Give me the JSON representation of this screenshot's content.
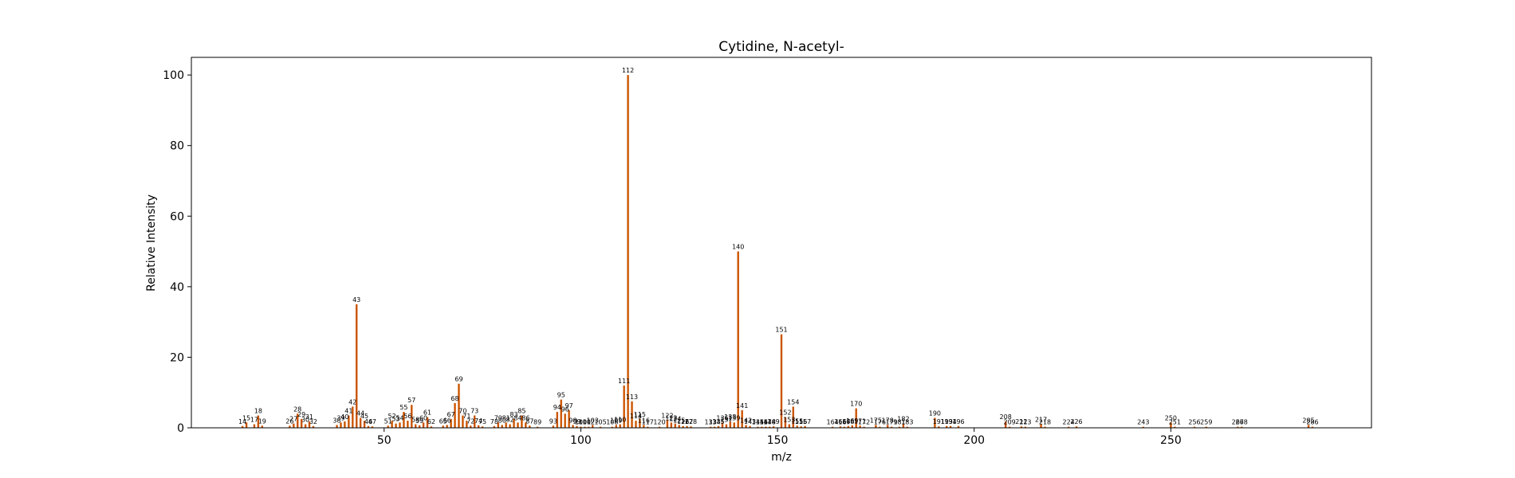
{
  "chart_data": {
    "type": "bar",
    "title": "Cytidine, N-acetyl-",
    "xlabel": "m/z",
    "ylabel": "Relative Intensity",
    "xlim": [
      1,
      301
    ],
    "ylim": [
      0,
      105
    ],
    "xticks": [
      50,
      100,
      150,
      200,
      250
    ],
    "yticks": [
      0,
      20,
      40,
      60,
      80,
      100
    ],
    "grid": false,
    "bar_color": "#cc5500",
    "peaks": [
      {
        "mz": 14,
        "value": 0.5
      },
      {
        "mz": 15,
        "value": 1.5
      },
      {
        "mz": 17,
        "value": 1.0
      },
      {
        "mz": 18,
        "value": 3.5
      },
      {
        "mz": 19,
        "value": 0.6
      },
      {
        "mz": 26,
        "value": 0.6
      },
      {
        "mz": 27,
        "value": 1.2
      },
      {
        "mz": 28,
        "value": 4.0
      },
      {
        "mz": 29,
        "value": 2.5
      },
      {
        "mz": 30,
        "value": 1.0
      },
      {
        "mz": 31,
        "value": 1.8
      },
      {
        "mz": 32,
        "value": 0.5
      },
      {
        "mz": 38,
        "value": 0.8
      },
      {
        "mz": 39,
        "value": 1.5
      },
      {
        "mz": 40,
        "value": 1.8
      },
      {
        "mz": 41,
        "value": 3.5
      },
      {
        "mz": 42,
        "value": 6.0
      },
      {
        "mz": 43,
        "value": 35.0
      },
      {
        "mz": 44,
        "value": 2.8
      },
      {
        "mz": 45,
        "value": 2.0
      },
      {
        "mz": 46,
        "value": 0.5
      },
      {
        "mz": 47,
        "value": 0.4
      },
      {
        "mz": 51,
        "value": 0.6
      },
      {
        "mz": 52,
        "value": 2.0
      },
      {
        "mz": 53,
        "value": 1.2
      },
      {
        "mz": 54,
        "value": 1.5
      },
      {
        "mz": 55,
        "value": 4.5
      },
      {
        "mz": 56,
        "value": 2.0
      },
      {
        "mz": 57,
        "value": 6.5
      },
      {
        "mz": 58,
        "value": 1.0
      },
      {
        "mz": 59,
        "value": 0.7
      },
      {
        "mz": 60,
        "value": 1.5
      },
      {
        "mz": 61,
        "value": 3.0
      },
      {
        "mz": 62,
        "value": 0.4
      },
      {
        "mz": 65,
        "value": 0.6
      },
      {
        "mz": 66,
        "value": 0.8
      },
      {
        "mz": 67,
        "value": 2.5
      },
      {
        "mz": 68,
        "value": 7.0
      },
      {
        "mz": 69,
        "value": 12.5
      },
      {
        "mz": 70,
        "value": 3.5
      },
      {
        "mz": 71,
        "value": 2.0
      },
      {
        "mz": 72,
        "value": 0.6
      },
      {
        "mz": 73,
        "value": 3.5
      },
      {
        "mz": 74,
        "value": 0.7
      },
      {
        "mz": 75,
        "value": 0.4
      },
      {
        "mz": 78,
        "value": 0.5
      },
      {
        "mz": 79,
        "value": 1.5
      },
      {
        "mz": 80,
        "value": 0.8
      },
      {
        "mz": 81,
        "value": 1.5
      },
      {
        "mz": 82,
        "value": 1.0
      },
      {
        "mz": 83,
        "value": 2.5
      },
      {
        "mz": 84,
        "value": 1.5
      },
      {
        "mz": 85,
        "value": 3.5
      },
      {
        "mz": 86,
        "value": 1.5
      },
      {
        "mz": 87,
        "value": 0.6
      },
      {
        "mz": 89,
        "value": 0.3
      },
      {
        "mz": 93,
        "value": 0.6
      },
      {
        "mz": 94,
        "value": 4.5
      },
      {
        "mz": 95,
        "value": 8.0
      },
      {
        "mz": 96,
        "value": 4.0
      },
      {
        "mz": 97,
        "value": 5.0
      },
      {
        "mz": 98,
        "value": 0.8
      },
      {
        "mz": 99,
        "value": 0.5
      },
      {
        "mz": 100,
        "value": 0.3
      },
      {
        "mz": 101,
        "value": 0.3
      },
      {
        "mz": 102,
        "value": 0.3
      },
      {
        "mz": 103,
        "value": 0.8
      },
      {
        "mz": 105,
        "value": 0.3
      },
      {
        "mz": 108,
        "value": 0.3
      },
      {
        "mz": 109,
        "value": 0.8
      },
      {
        "mz": 110,
        "value": 1.0
      },
      {
        "mz": 111,
        "value": 12.0
      },
      {
        "mz": 112,
        "value": 100.0
      },
      {
        "mz": 113,
        "value": 7.5
      },
      {
        "mz": 114,
        "value": 2.0
      },
      {
        "mz": 115,
        "value": 2.5
      },
      {
        "mz": 116,
        "value": 0.8
      },
      {
        "mz": 117,
        "value": 0.3
      },
      {
        "mz": 120,
        "value": 0.3
      },
      {
        "mz": 122,
        "value": 2.2
      },
      {
        "mz": 123,
        "value": 1.5
      },
      {
        "mz": 124,
        "value": 1.2
      },
      {
        "mz": 125,
        "value": 0.8
      },
      {
        "mz": 126,
        "value": 0.5
      },
      {
        "mz": 127,
        "value": 0.5
      },
      {
        "mz": 128,
        "value": 0.4
      },
      {
        "mz": 133,
        "value": 0.3
      },
      {
        "mz": 134,
        "value": 0.3
      },
      {
        "mz": 135,
        "value": 0.5
      },
      {
        "mz": 136,
        "value": 1.5
      },
      {
        "mz": 137,
        "value": 1.0
      },
      {
        "mz": 138,
        "value": 1.8
      },
      {
        "mz": 139,
        "value": 1.5
      },
      {
        "mz": 140,
        "value": 50.0
      },
      {
        "mz": 141,
        "value": 5.0
      },
      {
        "mz": 142,
        "value": 0.8
      },
      {
        "mz": 143,
        "value": 0.5
      },
      {
        "mz": 145,
        "value": 0.3
      },
      {
        "mz": 146,
        "value": 0.3
      },
      {
        "mz": 147,
        "value": 0.3
      },
      {
        "mz": 148,
        "value": 0.3
      },
      {
        "mz": 149,
        "value": 0.4
      },
      {
        "mz": 151,
        "value": 26.5
      },
      {
        "mz": 152,
        "value": 3.0
      },
      {
        "mz": 153,
        "value": 1.0
      },
      {
        "mz": 154,
        "value": 6.0
      },
      {
        "mz": 155,
        "value": 0.6
      },
      {
        "mz": 156,
        "value": 0.4
      },
      {
        "mz": 157,
        "value": 0.5
      },
      {
        "mz": 164,
        "value": 0.3
      },
      {
        "mz": 166,
        "value": 0.4
      },
      {
        "mz": 167,
        "value": 0.3
      },
      {
        "mz": 168,
        "value": 0.5
      },
      {
        "mz": 169,
        "value": 0.7
      },
      {
        "mz": 170,
        "value": 5.5
      },
      {
        "mz": 171,
        "value": 0.6
      },
      {
        "mz": 172,
        "value": 0.3
      },
      {
        "mz": 175,
        "value": 0.8
      },
      {
        "mz": 176,
        "value": 0.3
      },
      {
        "mz": 178,
        "value": 0.8
      },
      {
        "mz": 179,
        "value": 0.3
      },
      {
        "mz": 181,
        "value": 0.3
      },
      {
        "mz": 182,
        "value": 1.2
      },
      {
        "mz": 183,
        "value": 0.3
      },
      {
        "mz": 190,
        "value": 2.8
      },
      {
        "mz": 191,
        "value": 0.4
      },
      {
        "mz": 193,
        "value": 0.5
      },
      {
        "mz": 194,
        "value": 0.5
      },
      {
        "mz": 196,
        "value": 0.5
      },
      {
        "mz": 208,
        "value": 1.8
      },
      {
        "mz": 209,
        "value": 0.3
      },
      {
        "mz": 212,
        "value": 0.4
      },
      {
        "mz": 213,
        "value": 0.3
      },
      {
        "mz": 217,
        "value": 1.0
      },
      {
        "mz": 218,
        "value": 0.3
      },
      {
        "mz": 224,
        "value": 0.3
      },
      {
        "mz": 226,
        "value": 0.4
      },
      {
        "mz": 243,
        "value": 0.3
      },
      {
        "mz": 250,
        "value": 1.5
      },
      {
        "mz": 251,
        "value": 0.3
      },
      {
        "mz": 256,
        "value": 0.3
      },
      {
        "mz": 259,
        "value": 0.3
      },
      {
        "mz": 267,
        "value": 0.3
      },
      {
        "mz": 268,
        "value": 0.3
      },
      {
        "mz": 285,
        "value": 0.8
      },
      {
        "mz": 286,
        "value": 0.3
      }
    ]
  }
}
